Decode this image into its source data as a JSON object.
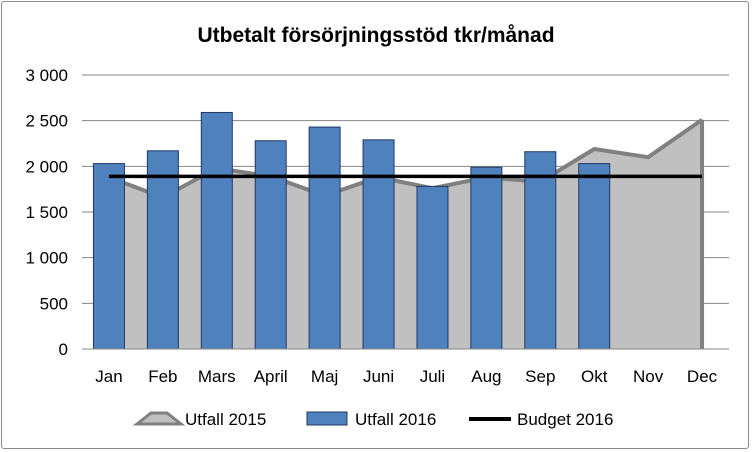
{
  "chart_data": {
    "type": "bar",
    "title": "Utbetalt försörjningsstöd tkr/månad",
    "xlabel": "",
    "ylabel": "",
    "categories": [
      "Jan",
      "Feb",
      "Mars",
      "April",
      "Maj",
      "Juni",
      "Juli",
      "Aug",
      "Sep",
      "Okt",
      "Nov",
      "Dec"
    ],
    "ylim": [
      0,
      3000
    ],
    "yticks": [
      0,
      500,
      1000,
      1500,
      2000,
      2500,
      3000
    ],
    "ytick_labels": [
      "0",
      "500",
      "1 000",
      "1 500",
      "2 000",
      "2 500",
      "3 000"
    ],
    "grid": true,
    "legend_position": "bottom",
    "series": [
      {
        "name": "Utfall 2015",
        "type": "area",
        "color": "#c0c0c0",
        "edge_color": "#808080",
        "values": [
          1880,
          1660,
          1980,
          1890,
          1680,
          1880,
          1760,
          1880,
          1830,
          2190,
          2100,
          2510
        ]
      },
      {
        "name": "Utfall 2016",
        "type": "bar",
        "color": "#4f81bd",
        "edge_color": "#1f3864",
        "values": [
          2030,
          2170,
          2590,
          2280,
          2430,
          2290,
          1780,
          1990,
          2160,
          2030,
          null,
          null
        ]
      },
      {
        "name": "Budget 2016",
        "type": "line",
        "color": "#000000",
        "values": [
          1890,
          1890,
          1890,
          1890,
          1890,
          1890,
          1890,
          1890,
          1890,
          1890,
          1890,
          1890
        ]
      }
    ]
  }
}
